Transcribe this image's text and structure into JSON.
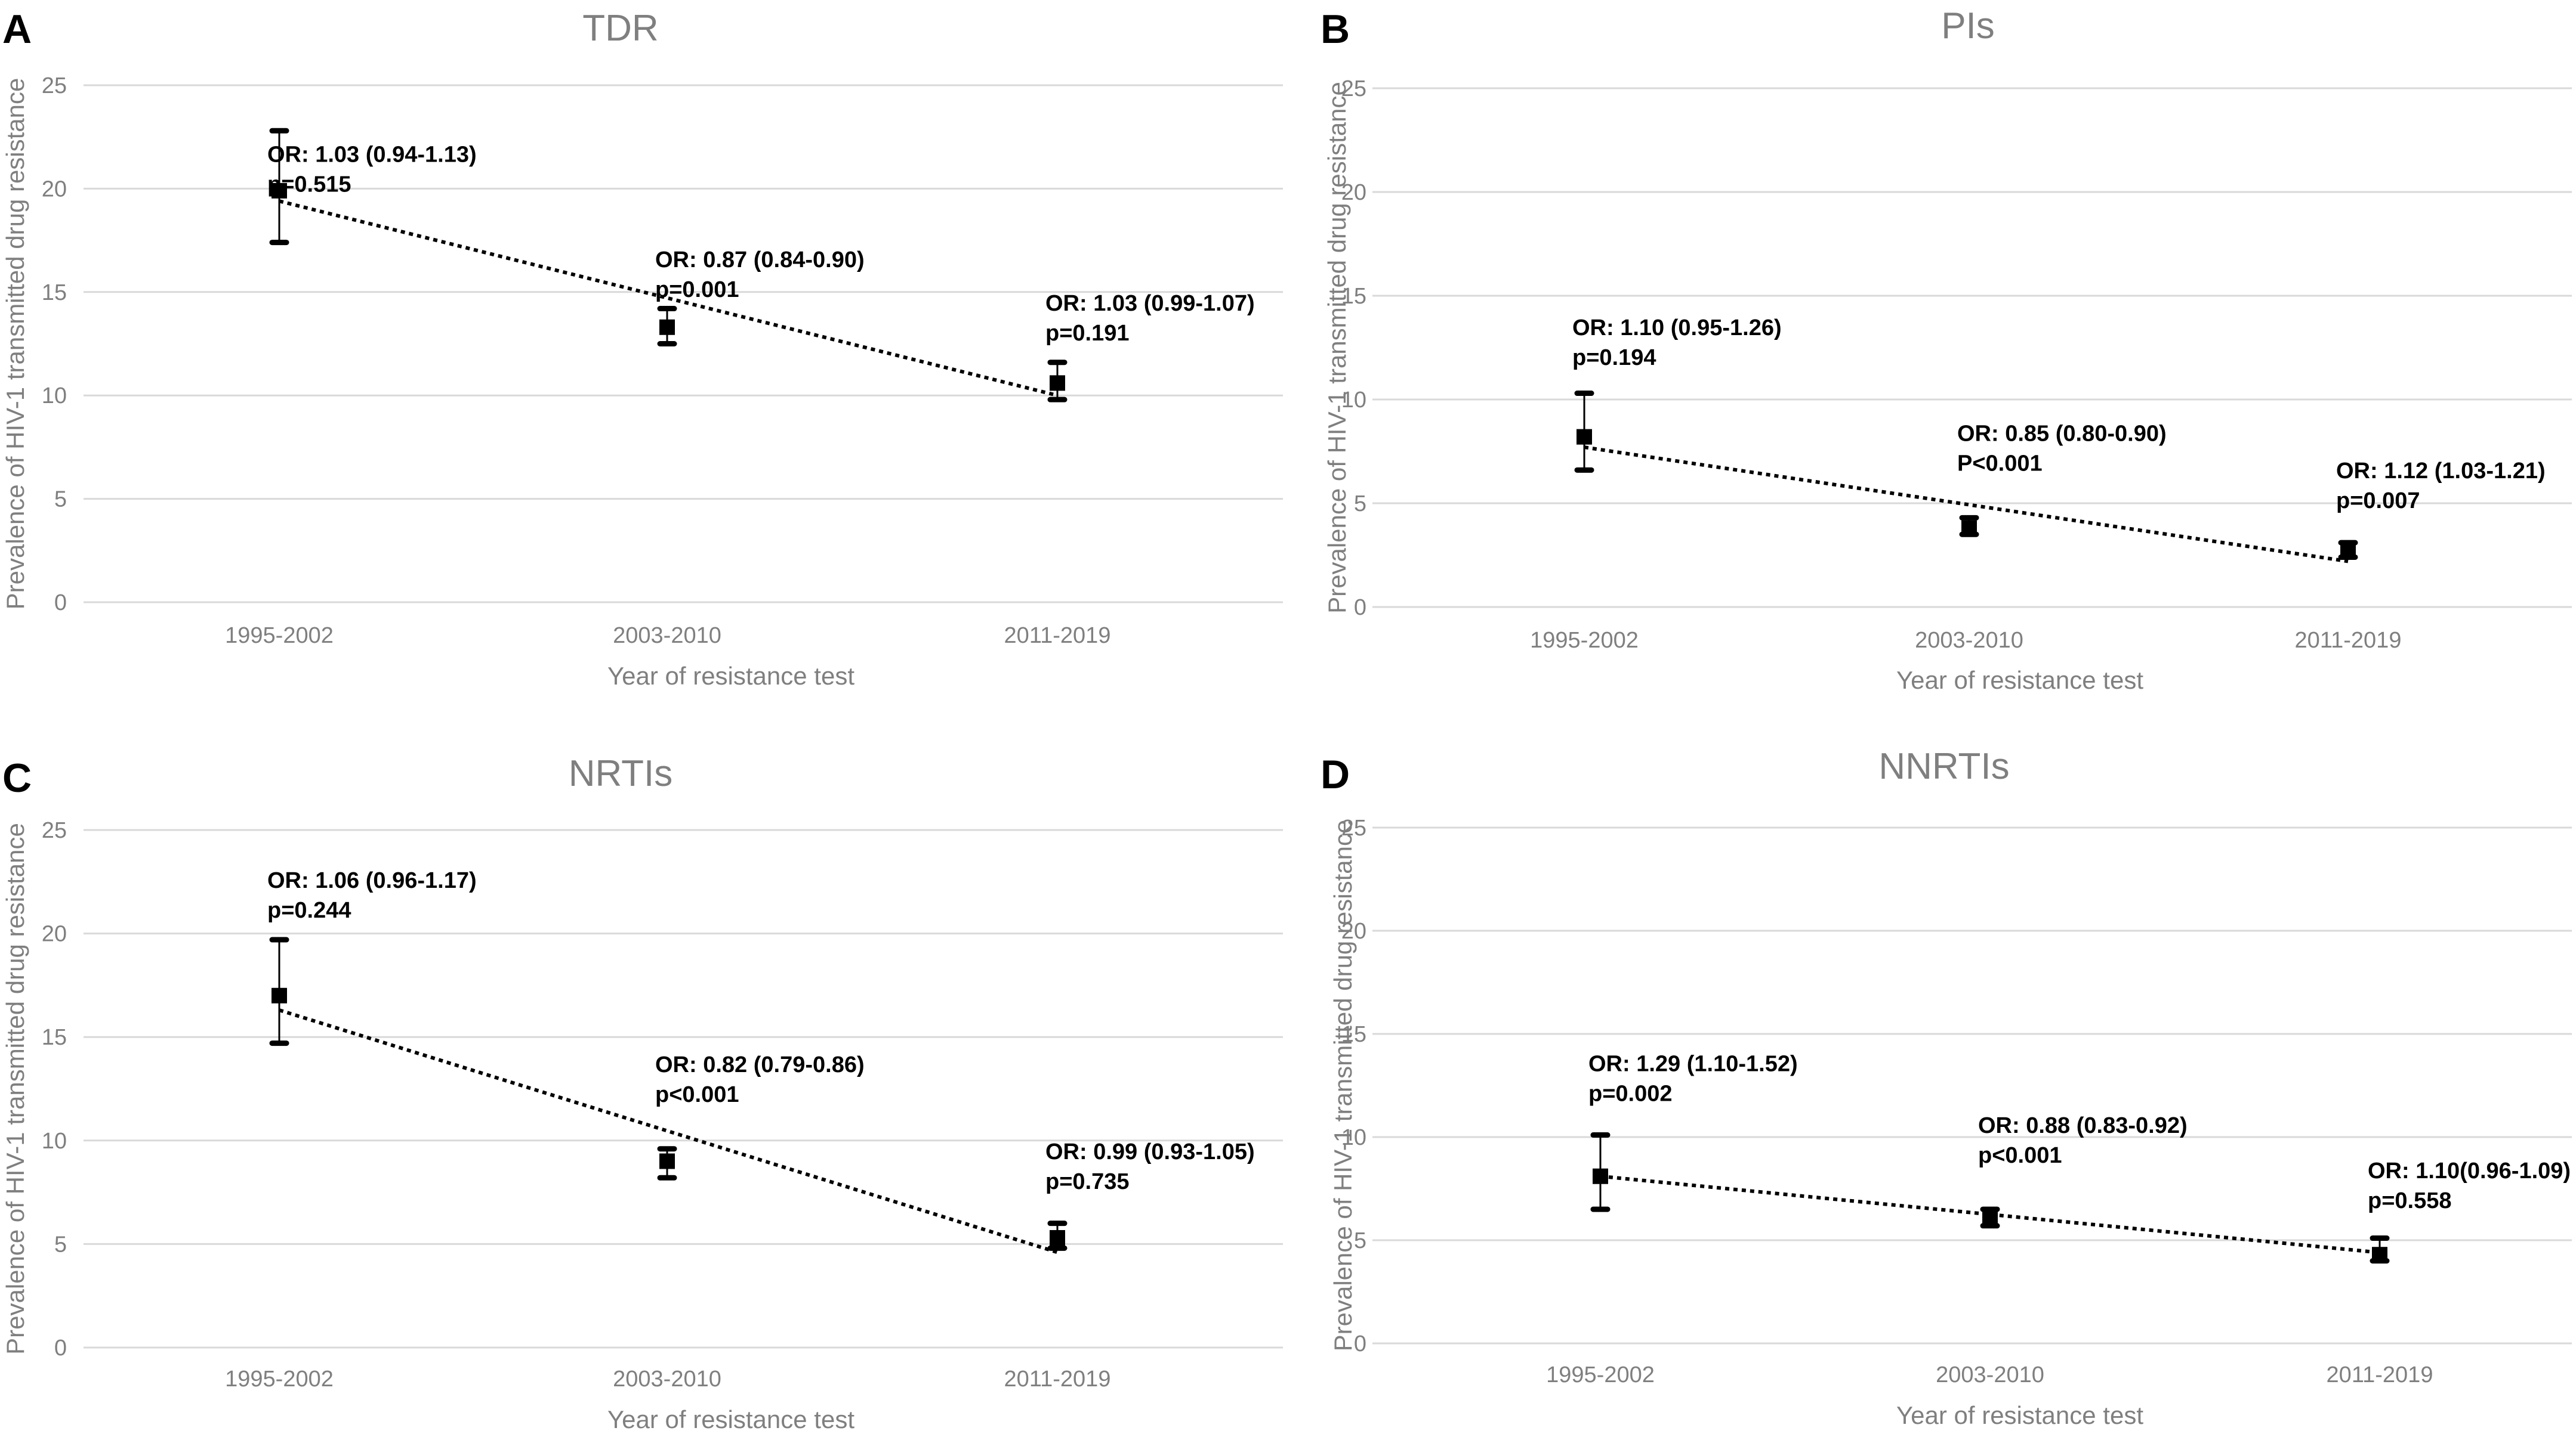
{
  "chart_data": [
    {
      "panel": "A",
      "type": "scatter",
      "title": "TDR",
      "xlabel": "Year of resistance test",
      "ylabel": "Prevalence of HIV-1 transmitted drug resistance",
      "categories": [
        "1995-2002",
        "2003-2010",
        "2011-2019"
      ],
      "yticks": [
        "0",
        "5",
        "10",
        "15",
        "20",
        "25"
      ],
      "ylim": [
        0,
        25
      ],
      "series": [
        {
          "name": "Prevalence",
          "values": [
            19.9,
            13.3,
            10.6
          ],
          "lower": [
            17.4,
            12.5,
            9.8
          ],
          "upper": [
            22.8,
            14.2,
            11.6
          ]
        }
      ],
      "trendline": {
        "start": 19.4,
        "end": 10.0
      },
      "annotations": [
        {
          "category": "1995-2002",
          "or_text": "OR: 1.03 (0.94-1.13)",
          "p_text": "p=0.515",
          "y": 21.3
        },
        {
          "category": "2003-2010",
          "or_text": "OR: 0.87 (0.84-0.90)",
          "p_text": "p=0.001",
          "y": 16.2
        },
        {
          "category": "2011-2019",
          "or_text": "OR: 1.03 (0.99-1.07)",
          "p_text": "p=0.191",
          "y": 14.1
        }
      ]
    },
    {
      "panel": "B",
      "type": "scatter",
      "title": "PIs",
      "xlabel": "Year of resistance test",
      "ylabel": "Prevalence of HIV-1 transmitted drug resistance",
      "categories": [
        "1995-2002",
        "2003-2010",
        "2011-2019"
      ],
      "yticks": [
        "0",
        "5",
        "10",
        "15",
        "20",
        "25"
      ],
      "ylim": [
        0,
        25
      ],
      "series": [
        {
          "name": "Prevalence",
          "values": [
            8.2,
            3.8,
            2.7
          ],
          "lower": [
            6.6,
            3.5,
            2.4
          ],
          "upper": [
            10.3,
            4.3,
            3.1
          ]
        }
      ],
      "trendline": {
        "start": 7.7,
        "end": 2.2
      },
      "annotations": [
        {
          "category": "1995-2002",
          "or_text": "OR: 1.10 (0.95-1.26)",
          "p_text": "p=0.194",
          "y": 13.1
        },
        {
          "category": "2003-2010",
          "or_text": "OR: 0.85 (0.80-0.90)",
          "p_text": "P<0.001",
          "y": 8.0
        },
        {
          "category": "2011-2019",
          "or_text": "OR: 1.12 (1.03-1.21)",
          "p_text": "p=0.007",
          "y": 6.2
        }
      ]
    },
    {
      "panel": "C",
      "type": "scatter",
      "title": "NRTIs",
      "xlabel": "Year of resistance test",
      "ylabel": "Prevalence of HIV-1 transmitted drug resistance",
      "categories": [
        "1995-2002",
        "2003-2010",
        "2011-2019"
      ],
      "yticks": [
        "0",
        "5",
        "10",
        "15",
        "20",
        "25"
      ],
      "ylim": [
        0,
        25
      ],
      "series": [
        {
          "name": "Prevalence",
          "values": [
            17.0,
            9.0,
            5.3
          ],
          "lower": [
            14.7,
            8.2,
            4.8
          ],
          "upper": [
            19.7,
            9.6,
            6.0
          ]
        }
      ],
      "trendline": {
        "start": 16.3,
        "end": 4.6
      },
      "annotations": [
        {
          "category": "1995-2002",
          "or_text": "OR: 1.06 (0.96-1.17)",
          "p_text": "p=0.244",
          "y": 22.2
        },
        {
          "category": "2003-2010",
          "or_text": "OR: 0.82 (0.79-0.86)",
          "p_text": "p<0.001",
          "y": 13.3
        },
        {
          "category": "2011-2019",
          "or_text": "OR: 0.99 (0.93-1.05)",
          "p_text": "p=0.735",
          "y": 9.1
        }
      ]
    },
    {
      "panel": "D",
      "type": "scatter",
      "title": "NNRTIs",
      "xlabel": "Year of resistance test",
      "ylabel": "Prevalence of HIV-1 transmitted drug resistance",
      "categories": [
        "1995-2002",
        "2003-2010",
        "2011-2019"
      ],
      "yticks": [
        "0",
        "5",
        "10",
        "15",
        "20",
        "25"
      ],
      "ylim": [
        0,
        25
      ],
      "series": [
        {
          "name": "Prevalence",
          "values": [
            8.1,
            6.0,
            4.3
          ],
          "lower": [
            6.5,
            5.7,
            4.0
          ],
          "upper": [
            10.1,
            6.5,
            5.1
          ]
        }
      ],
      "trendline": {
        "start": 8.1,
        "end": 4.4
      },
      "annotations": [
        {
          "category": "1995-2002",
          "or_text": "OR: 1.29 (1.10-1.52)",
          "p_text": "p=0.002",
          "y": 13.2
        },
        {
          "category": "2003-2010",
          "or_text": "OR: 0.88 (0.83-0.92)",
          "p_text": "p<0.001",
          "y": 10.2
        },
        {
          "category": "2011-2019",
          "or_text": "OR: 1.10(0.96-1.09)",
          "p_text": "p=0.558",
          "y": 8.0
        }
      ]
    }
  ]
}
